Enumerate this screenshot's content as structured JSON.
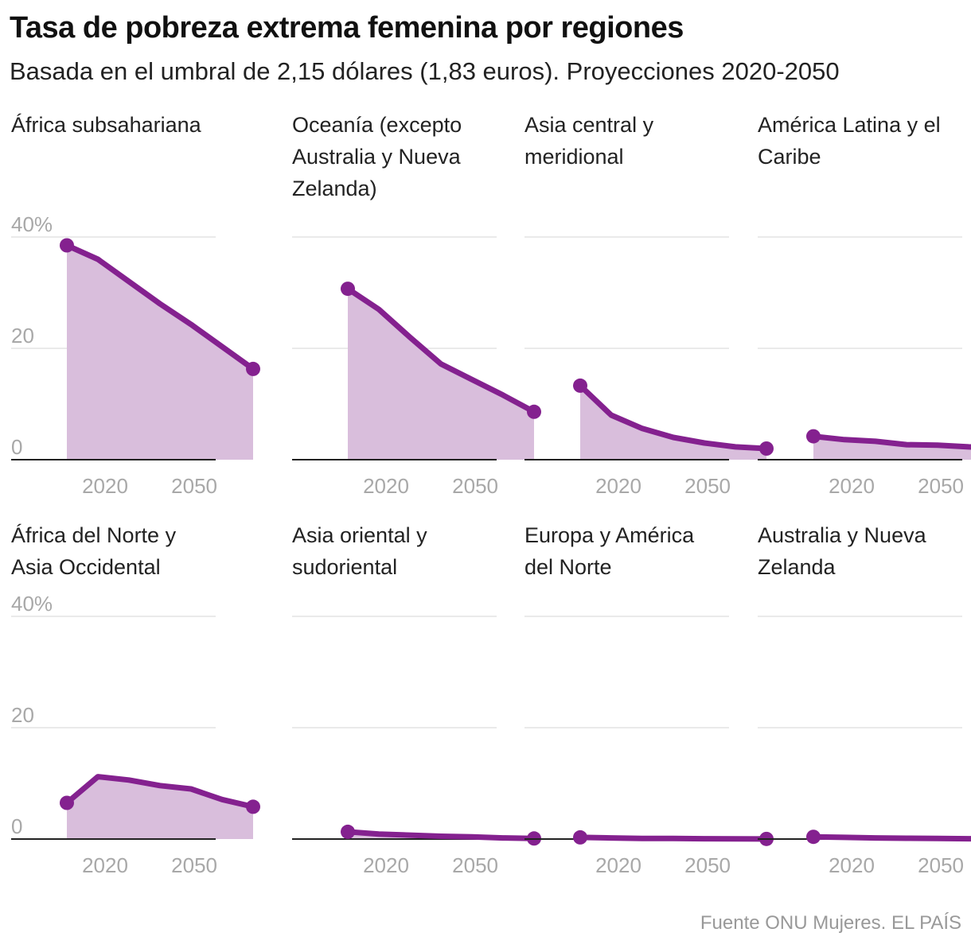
{
  "title": "Tasa de pobreza extrema femenina por regiones",
  "subtitle": "Basada en el umbral de 2,15 dólares (1,83 euros). Proyecciones 2020-2050",
  "source": "Fuente ONU Mujeres. EL PAÍS",
  "colors": {
    "line": "#84218f",
    "area": "#d9bedc",
    "grid": "#e3e3e3",
    "axis": "#222222",
    "tick": "#a8a8a8"
  },
  "chart_data": {
    "type": "area",
    "x": [
      2015,
      2020,
      2025,
      2030,
      2035,
      2040,
      2045
    ],
    "x_ticks": [
      2020,
      2050
    ],
    "x_tick_labels": [
      "2020",
      "2050"
    ],
    "ylim": [
      0,
      40
    ],
    "y_ticks": [
      0,
      20,
      40
    ],
    "y_tick_labels": [
      "0",
      "20",
      "40%"
    ],
    "grid": true,
    "series": [
      {
        "name": "África subsahariana",
        "values": [
          38.5,
          36,
          32,
          28,
          24.3,
          20.3,
          16.3
        ]
      },
      {
        "name": "Oceanía (excepto Australia y Nueva Zelanda)",
        "values": [
          30.7,
          27,
          22,
          17.2,
          14.4,
          11.6,
          8.6
        ]
      },
      {
        "name": "Asia central y meridional",
        "values": [
          13.3,
          8,
          5.6,
          4,
          3,
          2.3,
          2
        ]
      },
      {
        "name": "América Latina y el Caribe",
        "values": [
          4.2,
          3.6,
          3.3,
          2.7,
          2.6,
          2.3,
          2.2
        ]
      },
      {
        "name": "África del Norte y Asia Occidental",
        "values": [
          6.5,
          11.2,
          10.6,
          9.6,
          9,
          7.1,
          5.8
        ]
      },
      {
        "name": "Asia oriental y sudoriental",
        "values": [
          1.3,
          0.9,
          0.7,
          0.5,
          0.4,
          0.2,
          0.1
        ]
      },
      {
        "name": "Europa y América del Norte",
        "values": [
          0.3,
          0.2,
          0.1,
          0.1,
          0.05,
          0.03,
          0.02
        ]
      },
      {
        "name": "Australia y Nueva Zelanda",
        "values": [
          0.4,
          0.3,
          0.2,
          0.15,
          0.1,
          0.05,
          0.03
        ]
      }
    ]
  }
}
